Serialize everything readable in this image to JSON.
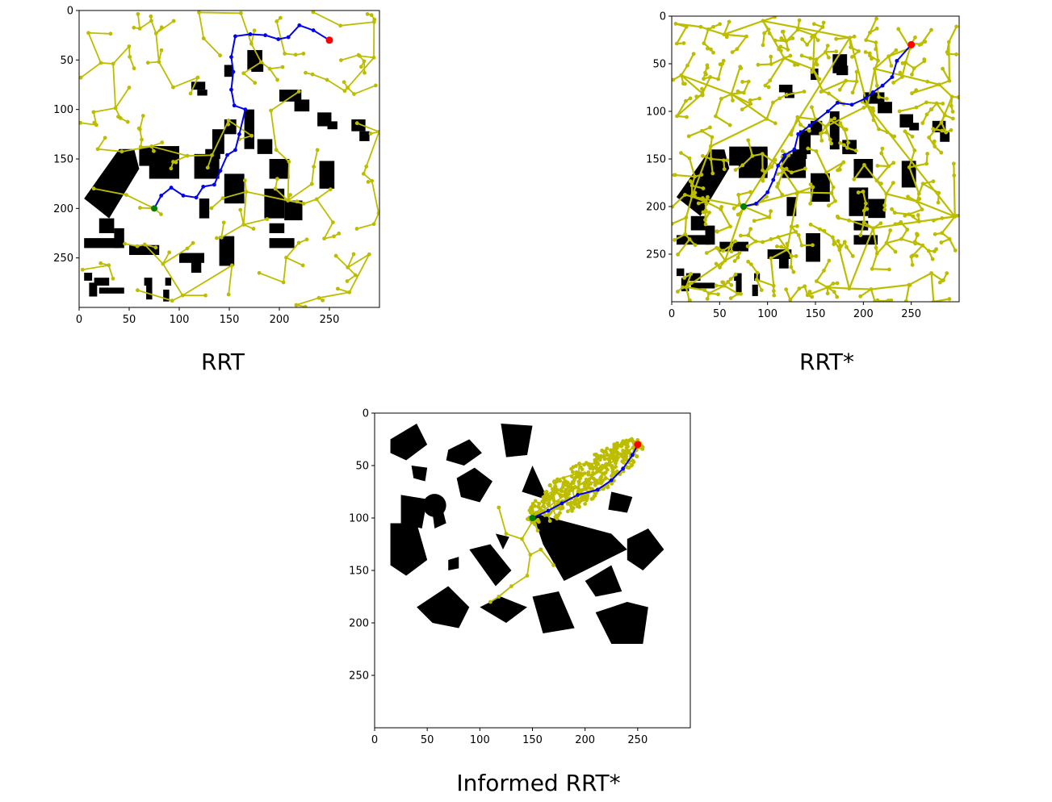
{
  "colors": {
    "obstacle": "#000000",
    "tree": "#bdbd00",
    "path": "#0000ee",
    "start": "#008000",
    "goal": "#ff0000",
    "axis": "#000000",
    "background": "#ffffff"
  },
  "panels": [
    {
      "id": "rrt",
      "caption": "RRT",
      "x_ticks": [
        "0",
        "50",
        "100",
        "150",
        "200",
        "250"
      ],
      "y_ticks": [
        "0",
        "50",
        "100",
        "150",
        "200",
        "250"
      ],
      "start": [
        75,
        200
      ],
      "goal": [
        250,
        30
      ],
      "path": [
        [
          75,
          200
        ],
        [
          82,
          187
        ],
        [
          92,
          179
        ],
        [
          104,
          187
        ],
        [
          117,
          189
        ],
        [
          124,
          178
        ],
        [
          135,
          176
        ],
        [
          141,
          162
        ],
        [
          148,
          146
        ],
        [
          156,
          141
        ],
        [
          160,
          125
        ],
        [
          166,
          100
        ],
        [
          155,
          96
        ],
        [
          152,
          80
        ],
        [
          154,
          62
        ],
        [
          152,
          47
        ],
        [
          156,
          26
        ],
        [
          171,
          24
        ],
        [
          186,
          25
        ],
        [
          199,
          29
        ],
        [
          209,
          27
        ],
        [
          220,
          15
        ],
        [
          234,
          20
        ],
        [
          250,
          30
        ]
      ],
      "tree_style": "sparse"
    },
    {
      "id": "rrt-star",
      "caption": "RRT*",
      "x_ticks": [
        "0",
        "50",
        "100",
        "150",
        "200",
        "250"
      ],
      "y_ticks": [
        "0",
        "50",
        "100",
        "150",
        "200",
        "250"
      ],
      "start": [
        75,
        200
      ],
      "goal": [
        250,
        30
      ],
      "path": [
        [
          75,
          200
        ],
        [
          88,
          197
        ],
        [
          100,
          185
        ],
        [
          106,
          172
        ],
        [
          111,
          157
        ],
        [
          118,
          146
        ],
        [
          128,
          140
        ],
        [
          132,
          124
        ],
        [
          144,
          115
        ],
        [
          163,
          100
        ],
        [
          173,
          91
        ],
        [
          188,
          93
        ],
        [
          203,
          86
        ],
        [
          210,
          80
        ],
        [
          220,
          73
        ],
        [
          230,
          64
        ],
        [
          235,
          47
        ],
        [
          250,
          30
        ]
      ],
      "tree_style": "dense"
    },
    {
      "id": "informed-rrt-star",
      "caption": "Informed RRT*",
      "x_ticks": [
        "0",
        "50",
        "100",
        "150",
        "200",
        "250"
      ],
      "y_ticks": [
        "0",
        "50",
        "100",
        "150",
        "200",
        "250"
      ],
      "start": [
        150,
        100
      ],
      "goal": [
        250,
        30
      ],
      "path": [
        [
          150,
          100
        ],
        [
          165,
          93
        ],
        [
          178,
          86
        ],
        [
          193,
          78
        ],
        [
          212,
          73
        ],
        [
          225,
          64
        ],
        [
          236,
          53
        ],
        [
          245,
          40
        ],
        [
          250,
          30
        ]
      ],
      "tree_style": "ellipse"
    }
  ]
}
